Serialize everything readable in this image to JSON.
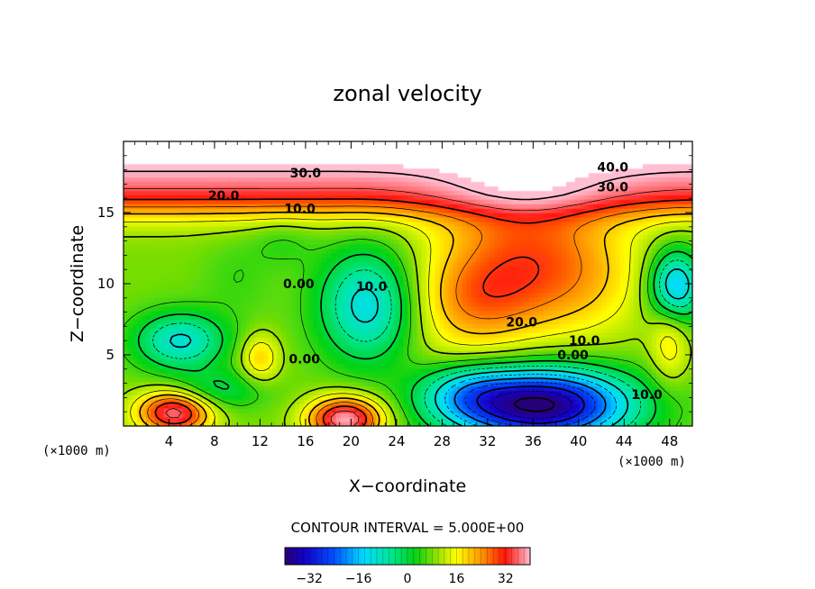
{
  "chart_data": {
    "type": "heatmap",
    "title": "zonal velocity",
    "xlabel": "X−coordinate",
    "ylabel": "Z−coordinate",
    "x_unit_left": "(×1000 m)",
    "x_unit_right": "(×1000 m)",
    "xlim": [
      0,
      50
    ],
    "ylim": [
      0,
      20
    ],
    "x_ticks": [
      4,
      8,
      12,
      16,
      20,
      24,
      28,
      32,
      36,
      40,
      44,
      48
    ],
    "y_ticks": [
      5,
      10,
      15
    ],
    "contour_interval_text": "CONTOUR INTERVAL = 5.000E+00",
    "contour_labels": [
      {
        "text": "40.0",
        "x": 43.0,
        "y": 18.2
      },
      {
        "text": "30.0",
        "x": 16.0,
        "y": 17.8
      },
      {
        "text": "30.0",
        "x": 43.0,
        "y": 16.8
      },
      {
        "text": "20.0",
        "x": 8.8,
        "y": 16.2
      },
      {
        "text": "10.0",
        "x": 15.5,
        "y": 15.3
      },
      {
        "text": "0.00",
        "x": 15.4,
        "y": 10.0
      },
      {
        "text": "10.0",
        "x": 21.8,
        "y": 9.8
      },
      {
        "text": "20.0",
        "x": 35.0,
        "y": 7.3
      },
      {
        "text": "10.0",
        "x": 40.5,
        "y": 6.0
      },
      {
        "text": "0.00",
        "x": 39.5,
        "y": 5.0
      },
      {
        "text": "0.00",
        "x": 15.9,
        "y": 4.7
      },
      {
        "text": "10.0",
        "x": 46.0,
        "y": 2.2
      }
    ],
    "colorbar": {
      "range": [
        -40,
        40
      ],
      "ticks": [
        -32,
        -16,
        0,
        16,
        32
      ],
      "tick_labels": [
        "−32",
        "−16",
        "0",
        "16",
        "32"
      ]
    },
    "features": [
      {
        "type": "jet_maximum",
        "x": 35,
        "y": 15,
        "value": 38
      },
      {
        "type": "jet_maximum",
        "x": 4.5,
        "y": 1.0,
        "value": 40
      },
      {
        "type": "jet_maximum",
        "x": 19.5,
        "y": 0.6,
        "value": 40
      },
      {
        "type": "jet_minimum",
        "x": 21.5,
        "y": 8.0,
        "value": -12
      },
      {
        "type": "jet_minimum",
        "x": 36.0,
        "y": 1.5,
        "value": -40
      },
      {
        "type": "jet_minimum",
        "x": 48.5,
        "y": 9.8,
        "value": -20
      },
      {
        "type": "jet_minimum",
        "x": 4.8,
        "y": 6.0,
        "value": -14
      }
    ]
  }
}
